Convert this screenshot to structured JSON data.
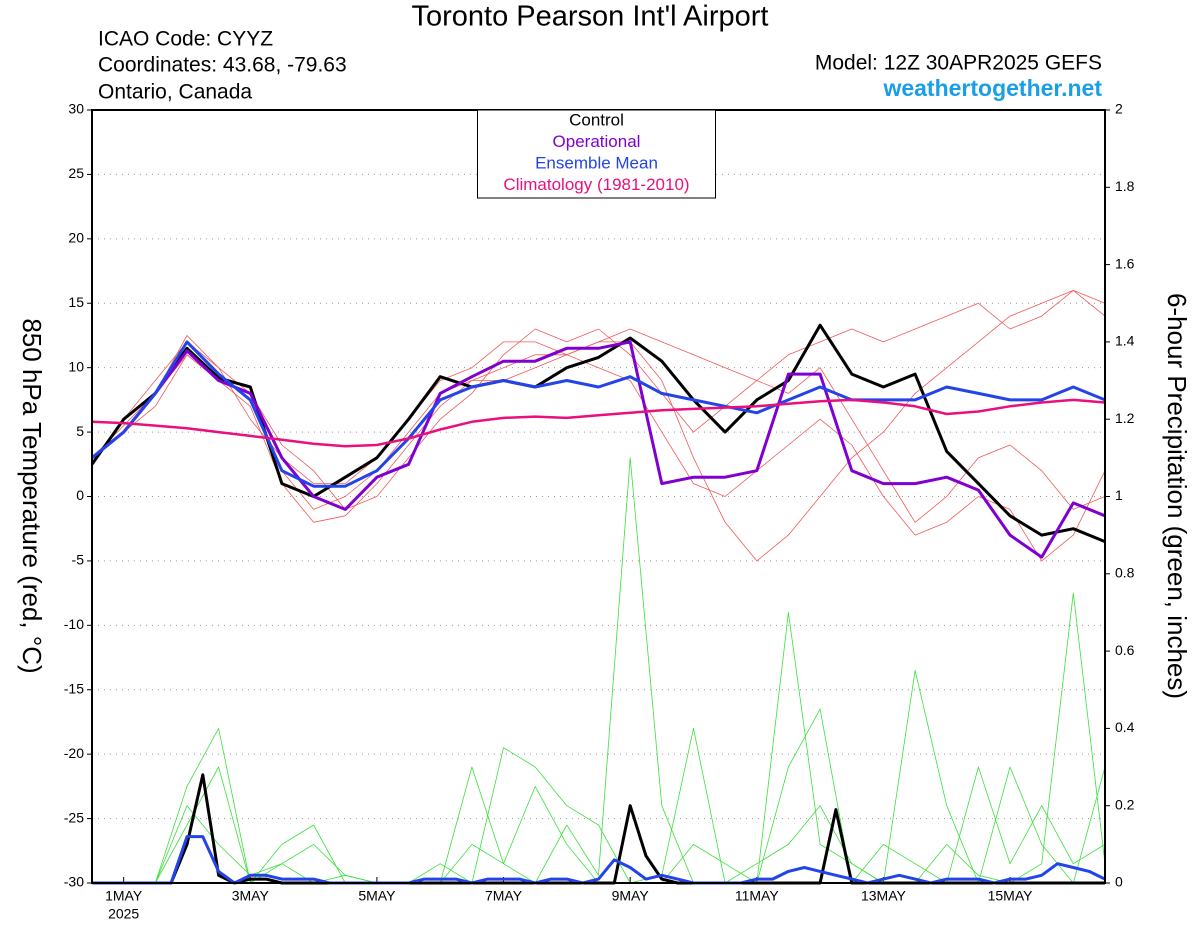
{
  "chart_data": {
    "type": "line",
    "title": "Toronto Pearson Int'l Airport",
    "info": {
      "icao": "ICAO Code: CYYZ",
      "coordinates": "Coordinates: 43.68, -79.63",
      "location": "Ontario, Canada",
      "model": "Model: 12Z 30APR2025 GEFS",
      "source": "weathertogether.net"
    },
    "ylabel": "850 hPa Temperature (red, °C)",
    "y2label": "6-hour Precipitation (green, inches)",
    "x": [
      0.5,
      1,
      1.5,
      2,
      2.5,
      3,
      3.5,
      4,
      4.5,
      5,
      5.5,
      6,
      6.5,
      7,
      7.5,
      8,
      8.5,
      9,
      9.5,
      10,
      10.5,
      11,
      11.5,
      12,
      12.5,
      13,
      13.5,
      14,
      14.5,
      15,
      15.5,
      16,
      16.5
    ],
    "precip_x": [
      0.5,
      0.75,
      1,
      1.25,
      1.5,
      1.75,
      2,
      2.25,
      2.5,
      2.75,
      3,
      3.25,
      3.5,
      3.75,
      4,
      4.25,
      4.5,
      4.75,
      5,
      5.25,
      5.5,
      5.75,
      6,
      6.25,
      6.5,
      6.75,
      7,
      7.25,
      7.5,
      7.75,
      8,
      8.25,
      8.5,
      8.75,
      9,
      9.25,
      9.5,
      9.75,
      10,
      10.25,
      10.5,
      10.75,
      11,
      11.25,
      11.5,
      11.75,
      12,
      12.25,
      12.5,
      12.75,
      13,
      13.25,
      13.5,
      13.75,
      14,
      14.25,
      14.5,
      14.75,
      15,
      15.25,
      15.5,
      15.75,
      16,
      16.25,
      16.5
    ],
    "xlim": [
      0.5,
      16.5
    ],
    "xticks": [
      {
        "value": 1,
        "label": "1MAY"
      },
      {
        "value": 3,
        "label": "3MAY"
      },
      {
        "value": 5,
        "label": "5MAY"
      },
      {
        "value": 7,
        "label": "7MAY"
      },
      {
        "value": 9,
        "label": "9MAY"
      },
      {
        "value": 11,
        "label": "11MAY"
      },
      {
        "value": 13,
        "label": "13MAY"
      },
      {
        "value": 15,
        "label": "15MAY"
      }
    ],
    "x_year": "2025",
    "ylim": [
      -30,
      30
    ],
    "yticks": [
      -30,
      -25,
      -20,
      -15,
      -10,
      -5,
      0,
      5,
      10,
      15,
      20,
      25,
      30
    ],
    "y2lim": [
      0,
      2
    ],
    "y2ticks": [
      0,
      0.2,
      0.4,
      0.6,
      0.8,
      1,
      1.2,
      1.4,
      1.6,
      1.8,
      2
    ],
    "grid": true,
    "legend": "top",
    "series": [
      {
        "name": "Control",
        "color": "#000000",
        "values": [
          2.5,
          6,
          8,
          11.5,
          9.2,
          8.5,
          1,
          0,
          1.5,
          3,
          6,
          9.3,
          8.5,
          9,
          8.5,
          10,
          10.8,
          12.3,
          10.5,
          7.5,
          5,
          7.5,
          9,
          13.3,
          9.5,
          8.5,
          9.5,
          3.5,
          1,
          -1.5,
          -3,
          -2.5,
          -3.5
        ]
      },
      {
        "name": "Operational",
        "color": "#8000d0",
        "values": [
          3,
          5,
          8,
          11.3,
          9,
          8,
          3,
          0,
          -1,
          1.5,
          2.5,
          8,
          9.3,
          10.5,
          10.5,
          11.5,
          11.5,
          12,
          1,
          1.5,
          1.5,
          2,
          9.5,
          9.5,
          2,
          1,
          1,
          1.5,
          0.5,
          -3,
          -4.7,
          -0.5,
          -1.5
        ]
      },
      {
        "name": "Ensemble Mean",
        "color": "#2244e8",
        "values": [
          3,
          5,
          8,
          12,
          9.5,
          7.5,
          2,
          0.8,
          0.8,
          2,
          4.5,
          7.5,
          8.5,
          9,
          8.5,
          9,
          8.5,
          9.3,
          8,
          7.5,
          7,
          6.5,
          7.5,
          8.5,
          7.5,
          7.5,
          7.5,
          8.5,
          8,
          7.5,
          7.5,
          8.5,
          7.5
        ]
      },
      {
        "name": "Climatology (1981-2010)",
        "color": "#e8107f",
        "values": [
          5.8,
          5.7,
          5.5,
          5.3,
          5,
          4.7,
          4.4,
          4.1,
          3.9,
          4,
          4.5,
          5.2,
          5.8,
          6.1,
          6.2,
          6.1,
          6.3,
          6.5,
          6.7,
          6.8,
          6.9,
          7,
          7.2,
          7.4,
          7.5,
          7.3,
          7,
          6.4,
          6.6,
          7,
          7.3,
          7.5,
          7.3
        ]
      }
    ],
    "precip": [
      {
        "color": "#000000",
        "axis": "y2",
        "values": [
          0,
          0,
          0,
          0,
          0,
          0,
          0.1,
          0.28,
          0.02,
          0,
          0.01,
          0.01,
          0,
          0,
          0,
          0,
          0,
          0,
          0,
          0,
          0,
          0,
          0,
          0,
          0,
          0,
          0,
          0,
          0,
          0,
          0,
          0,
          0,
          0,
          0.2,
          0.07,
          0.01,
          0,
          0,
          0,
          0,
          0,
          0,
          0,
          0,
          0,
          0,
          0.19,
          0,
          0,
          0,
          0,
          0,
          0,
          0,
          0,
          0,
          0,
          0,
          0,
          0,
          0,
          0,
          0,
          0
        ]
      },
      {
        "color": "#2244e8",
        "axis": "y2",
        "values": [
          0,
          0,
          0,
          0,
          0,
          0,
          0.12,
          0.12,
          0.03,
          0,
          0.02,
          0.02,
          0.01,
          0.01,
          0.01,
          0,
          0,
          0,
          0,
          0,
          0,
          0.01,
          0.01,
          0.01,
          0,
          0.01,
          0.01,
          0.01,
          0,
          0.01,
          0.01,
          0,
          0.01,
          0.06,
          0.04,
          0.01,
          0.02,
          0.01,
          0,
          0,
          0,
          0,
          0.01,
          0.01,
          0.03,
          0.04,
          0.03,
          0.02,
          0.01,
          0,
          0.01,
          0.02,
          0.01,
          0,
          0.01,
          0.01,
          0.01,
          0,
          0.01,
          0.01,
          0.02,
          0.05,
          0.04,
          0.03,
          0.01
        ]
      }
    ],
    "members": [
      {
        "color": "#f05a5a",
        "values": [
          3,
          5.5,
          8,
          12.5,
          10,
          8,
          2,
          -1,
          0,
          2,
          5,
          8,
          9,
          10,
          11,
          11,
          12,
          12,
          9,
          3,
          -2,
          -5,
          -3,
          0,
          3,
          5,
          8,
          10,
          12,
          14,
          15,
          16,
          15
        ]
      },
      {
        "color": "#f05a5a",
        "values": [
          3,
          5,
          8,
          11,
          9,
          7,
          1,
          -2,
          -1.5,
          1,
          4,
          7,
          9,
          9,
          10,
          11,
          10,
          9,
          5,
          1,
          0,
          2,
          4,
          6,
          4,
          0,
          -3,
          -2,
          0,
          -1,
          -5,
          -3,
          2
        ]
      },
      {
        "color": "#f05a5a",
        "values": [
          2.5,
          6,
          9,
          12,
          10,
          6,
          3,
          1,
          1,
          3,
          6,
          9,
          10,
          12,
          12,
          11,
          12,
          13,
          12,
          11,
          10,
          9,
          11,
          12,
          13,
          12,
          13,
          14,
          15,
          13,
          14,
          16,
          14
        ]
      },
      {
        "color": "#f05a5a",
        "values": [
          3,
          5,
          7,
          11,
          9,
          8,
          4,
          2,
          -1,
          0,
          3,
          6,
          8,
          11,
          13,
          12,
          13,
          11,
          8,
          5,
          7,
          9,
          8,
          10,
          6,
          2,
          -2,
          0,
          3,
          4,
          2,
          -1,
          0
        ]
      },
      {
        "color": "#3ce03c",
        "axis": "y2",
        "values": [
          0,
          0,
          0,
          0.15,
          0.3,
          0,
          0.05,
          0.1,
          0.02,
          0,
          0,
          0,
          0.3,
          0.05,
          0,
          0.15,
          0.02,
          1.1,
          0.2,
          0,
          0,
          0,
          0.7,
          0.1,
          0.05,
          0,
          0,
          0.1,
          0.02,
          0,
          0.05,
          0.75,
          0.05
        ]
      },
      {
        "color": "#3ce03c",
        "axis": "y2",
        "values": [
          0,
          0,
          0,
          0.25,
          0.4,
          0,
          0.1,
          0.15,
          0,
          0,
          0,
          0.05,
          0,
          0.35,
          0.3,
          0.2,
          0.15,
          0,
          0.02,
          0.4,
          0,
          0.05,
          0.1,
          0.2,
          0.05,
          0,
          0.55,
          0.2,
          0,
          0.3,
          0.1,
          0,
          0.3
        ]
      },
      {
        "color": "#3ce03c",
        "axis": "y2",
        "values": [
          0,
          0,
          0,
          0.2,
          0.1,
          0.02,
          0.05,
          0,
          0.02,
          0,
          0,
          0,
          0.1,
          0.05,
          0.25,
          0.1,
          0,
          0,
          0,
          0.1,
          0.05,
          0,
          0.3,
          0.45,
          0,
          0.1,
          0.05,
          0,
          0.3,
          0.05,
          0.2,
          0.05,
          0.1
        ]
      }
    ]
  }
}
